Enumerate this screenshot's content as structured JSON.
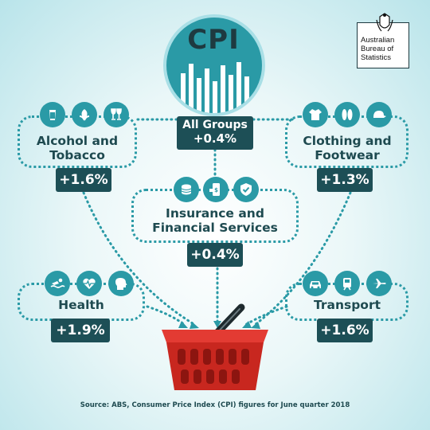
{
  "logo": {
    "line1": "Australian",
    "line2": "Bureau of",
    "line3": "Statistics"
  },
  "cpi": {
    "heading": "CPI",
    "label": "All Groups",
    "value": "+0.4%"
  },
  "groups": {
    "alcohol": {
      "title_line1": "Alcohol and",
      "title_line2": "Tobacco",
      "value": "+1.6%",
      "icons": [
        "beer-glass-icon",
        "leaf-icon",
        "wine-glasses-icon"
      ]
    },
    "clothing": {
      "title_line1": "Clothing and",
      "title_line2": "Footwear",
      "value": "+1.3%",
      "icons": [
        "shirt-icon",
        "sandals-icon",
        "cap-icon"
      ]
    },
    "insurance": {
      "title_line1": "Insurance and",
      "title_line2": "Financial Services",
      "value": "+0.4%",
      "icons": [
        "coins-icon",
        "phone-payment-icon",
        "shield-check-icon"
      ]
    },
    "health": {
      "title": "Health",
      "value": "+1.9%",
      "icons": [
        "swimmer-icon",
        "heartbeat-icon",
        "head-icon"
      ]
    },
    "transport": {
      "title": "Transport",
      "value": "+1.6%",
      "icons": [
        "car-icon",
        "train-icon",
        "plane-icon"
      ]
    }
  },
  "colors": {
    "teal": "#2a9aa6",
    "dark": "#1d4f56",
    "basket": "#d9302c"
  },
  "source": "Source: ABS, Consumer Price Index (CPI) figures for June quarter 2018"
}
